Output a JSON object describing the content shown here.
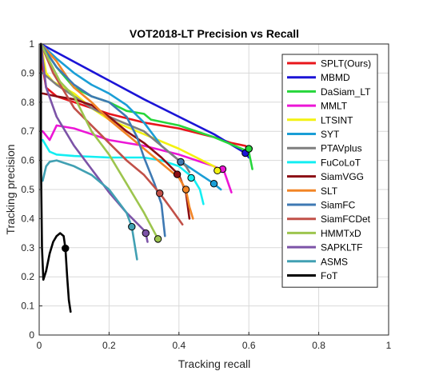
{
  "chart_data": {
    "type": "line",
    "title": "VOT2018-LT Precision vs Recall",
    "xlabel": "Tracking recall",
    "ylabel": "Tracking precision",
    "xlim": [
      0,
      1
    ],
    "ylim": [
      0,
      1
    ],
    "xticks": [
      "0",
      "0.2",
      "0.4",
      "0.6",
      "0.8",
      "1"
    ],
    "yticks": [
      "0",
      "0.1",
      "0.2",
      "0.3",
      "0.4",
      "0.5",
      "0.6",
      "0.7",
      "0.8",
      "0.9",
      "1"
    ],
    "grid": true,
    "legend_position": "top-right",
    "series": [
      {
        "name": "SPLT(Ours)",
        "color": "#e8151b",
        "marker": [
          0.6,
          0.64
        ],
        "points": [
          [
            0.005,
            1.0
          ],
          [
            0.01,
            0.92
          ],
          [
            0.02,
            0.85
          ],
          [
            0.05,
            0.82
          ],
          [
            0.1,
            0.8
          ],
          [
            0.2,
            0.76
          ],
          [
            0.3,
            0.73
          ],
          [
            0.4,
            0.71
          ],
          [
            0.5,
            0.68
          ],
          [
            0.55,
            0.66
          ],
          [
            0.59,
            0.65
          ],
          [
            0.6,
            0.64
          ]
        ]
      },
      {
        "name": "MBMD",
        "color": "#1b14d6",
        "marker": [
          0.59,
          0.625
        ],
        "points": [
          [
            0.005,
            1.0
          ],
          [
            0.3,
            0.81
          ],
          [
            0.5,
            0.69
          ],
          [
            0.59,
            0.625
          ],
          [
            0.6,
            0.61
          ]
        ]
      },
      {
        "name": "DaSiam_LT",
        "color": "#26d63b",
        "marker": [
          0.6,
          0.64
        ],
        "points": [
          [
            0.005,
            1.0
          ],
          [
            0.05,
            0.92
          ],
          [
            0.1,
            0.85
          ],
          [
            0.15,
            0.82
          ],
          [
            0.2,
            0.8
          ],
          [
            0.25,
            0.77
          ],
          [
            0.3,
            0.76
          ],
          [
            0.32,
            0.74
          ],
          [
            0.4,
            0.72
          ],
          [
            0.5,
            0.68
          ],
          [
            0.6,
            0.63
          ],
          [
            0.61,
            0.57
          ]
        ]
      },
      {
        "name": "MMLT",
        "color": "#ec16d6",
        "marker": [
          0.525,
          0.57
        ],
        "points": [
          [
            0.01,
            0.7
          ],
          [
            0.03,
            0.67
          ],
          [
            0.05,
            0.72
          ],
          [
            0.1,
            0.71
          ],
          [
            0.15,
            0.69
          ],
          [
            0.2,
            0.67
          ],
          [
            0.3,
            0.65
          ],
          [
            0.4,
            0.62
          ],
          [
            0.5,
            0.58
          ],
          [
            0.53,
            0.56
          ],
          [
            0.55,
            0.49
          ]
        ]
      },
      {
        "name": "LTSINT",
        "color": "#f3f211",
        "marker": [
          0.51,
          0.565
        ],
        "points": [
          [
            0.005,
            1.0
          ],
          [
            0.02,
            0.9
          ],
          [
            0.04,
            0.87
          ],
          [
            0.1,
            0.83
          ],
          [
            0.15,
            0.78
          ],
          [
            0.2,
            0.74
          ],
          [
            0.3,
            0.69
          ],
          [
            0.4,
            0.64
          ],
          [
            0.45,
            0.61
          ],
          [
            0.5,
            0.58
          ],
          [
            0.51,
            0.565
          ]
        ]
      },
      {
        "name": "SYT",
        "color": "#1a9ed6",
        "marker": [
          0.5,
          0.52
        ],
        "points": [
          [
            0.005,
            1.0
          ],
          [
            0.05,
            0.95
          ],
          [
            0.1,
            0.9
          ],
          [
            0.15,
            0.86
          ],
          [
            0.2,
            0.83
          ],
          [
            0.25,
            0.79
          ],
          [
            0.3,
            0.73
          ],
          [
            0.35,
            0.65
          ],
          [
            0.4,
            0.6
          ],
          [
            0.45,
            0.56
          ],
          [
            0.5,
            0.52
          ],
          [
            0.52,
            0.5
          ]
        ]
      },
      {
        "name": "PTAVplus",
        "color": "#7f7f7f",
        "marker": [
          0.405,
          0.595
        ],
        "points": [
          [
            0.01,
            0.9
          ],
          [
            0.05,
            0.86
          ],
          [
            0.1,
            0.82
          ],
          [
            0.15,
            0.78
          ],
          [
            0.2,
            0.75
          ],
          [
            0.3,
            0.7
          ],
          [
            0.35,
            0.65
          ],
          [
            0.4,
            0.6
          ],
          [
            0.42,
            0.58
          ],
          [
            0.43,
            0.56
          ]
        ]
      },
      {
        "name": "FuCoLoT",
        "color": "#13eef2",
        "marker": [
          0.435,
          0.54
        ],
        "points": [
          [
            0.01,
            0.67
          ],
          [
            0.03,
            0.63
          ],
          [
            0.05,
            0.62
          ],
          [
            0.1,
            0.615
          ],
          [
            0.2,
            0.61
          ],
          [
            0.3,
            0.61
          ],
          [
            0.35,
            0.6
          ],
          [
            0.4,
            0.58
          ],
          [
            0.44,
            0.54
          ],
          [
            0.46,
            0.5
          ],
          [
            0.47,
            0.45
          ]
        ]
      },
      {
        "name": "SiamVGG",
        "color": "#8c0f14",
        "marker": [
          0.395,
          0.552
        ],
        "points": [
          [
            0.01,
            0.83
          ],
          [
            0.05,
            0.82
          ],
          [
            0.1,
            0.81
          ],
          [
            0.15,
            0.79
          ],
          [
            0.2,
            0.75
          ],
          [
            0.25,
            0.7
          ],
          [
            0.3,
            0.66
          ],
          [
            0.35,
            0.61
          ],
          [
            0.4,
            0.55
          ],
          [
            0.42,
            0.49
          ],
          [
            0.43,
            0.4
          ]
        ]
      },
      {
        "name": "SLT",
        "color": "#f28526",
        "marker": [
          0.42,
          0.5
        ],
        "points": [
          [
            0.005,
            1.0
          ],
          [
            0.05,
            0.94
          ],
          [
            0.1,
            0.85
          ],
          [
            0.15,
            0.8
          ],
          [
            0.2,
            0.74
          ],
          [
            0.25,
            0.69
          ],
          [
            0.3,
            0.64
          ],
          [
            0.35,
            0.59
          ],
          [
            0.4,
            0.54
          ],
          [
            0.42,
            0.5
          ],
          [
            0.43,
            0.44
          ],
          [
            0.44,
            0.4
          ]
        ]
      },
      {
        "name": "SiamFC",
        "color": "#3e79b3",
        "marker": [
          0.405,
          0.595
        ],
        "points": [
          [
            0.005,
            1.0
          ],
          [
            0.05,
            0.92
          ],
          [
            0.1,
            0.86
          ],
          [
            0.15,
            0.82
          ],
          [
            0.2,
            0.8
          ],
          [
            0.25,
            0.75
          ],
          [
            0.28,
            0.68
          ],
          [
            0.3,
            0.61
          ],
          [
            0.33,
            0.52
          ],
          [
            0.35,
            0.45
          ],
          [
            0.36,
            0.34
          ]
        ]
      },
      {
        "name": "SiamFCDet",
        "color": "#c15048",
        "marker": [
          0.345,
          0.487
        ],
        "points": [
          [
            0.005,
            1.0
          ],
          [
            0.04,
            0.9
          ],
          [
            0.08,
            0.82
          ],
          [
            0.1,
            0.78
          ],
          [
            0.15,
            0.72
          ],
          [
            0.2,
            0.66
          ],
          [
            0.25,
            0.6
          ],
          [
            0.3,
            0.55
          ],
          [
            0.345,
            0.487
          ],
          [
            0.38,
            0.43
          ],
          [
            0.41,
            0.38
          ]
        ]
      },
      {
        "name": "HMMTxD",
        "color": "#9dc54e",
        "marker": [
          0.34,
          0.33
        ],
        "points": [
          [
            0.005,
            1.0
          ],
          [
            0.03,
            0.94
          ],
          [
            0.06,
            0.87
          ],
          [
            0.1,
            0.82
          ],
          [
            0.15,
            0.7
          ],
          [
            0.2,
            0.62
          ],
          [
            0.25,
            0.52
          ],
          [
            0.3,
            0.42
          ],
          [
            0.34,
            0.33
          ]
        ]
      },
      {
        "name": "SAPKLTF",
        "color": "#7c53a7",
        "marker": [
          0.305,
          0.35
        ],
        "points": [
          [
            0.005,
            1.0
          ],
          [
            0.02,
            0.85
          ],
          [
            0.05,
            0.75
          ],
          [
            0.1,
            0.65
          ],
          [
            0.15,
            0.57
          ],
          [
            0.2,
            0.49
          ],
          [
            0.25,
            0.42
          ],
          [
            0.3,
            0.36
          ],
          [
            0.305,
            0.35
          ],
          [
            0.31,
            0.32
          ]
        ]
      },
      {
        "name": "ASMS",
        "color": "#41a0b3",
        "marker": [
          0.265,
          0.372
        ],
        "points": [
          [
            0.01,
            0.53
          ],
          [
            0.02,
            0.58
          ],
          [
            0.03,
            0.595
          ],
          [
            0.05,
            0.6
          ],
          [
            0.1,
            0.58
          ],
          [
            0.15,
            0.55
          ],
          [
            0.2,
            0.5
          ],
          [
            0.25,
            0.42
          ],
          [
            0.265,
            0.372
          ],
          [
            0.28,
            0.26
          ]
        ]
      },
      {
        "name": "FoT",
        "color": "#000000",
        "marker": [
          0.075,
          0.298
        ],
        "points": [
          [
            0.005,
            1.0
          ],
          [
            0.005,
            0.6
          ],
          [
            0.008,
            0.3
          ],
          [
            0.012,
            0.19
          ],
          [
            0.02,
            0.22
          ],
          [
            0.03,
            0.28
          ],
          [
            0.04,
            0.32
          ],
          [
            0.05,
            0.34
          ],
          [
            0.06,
            0.35
          ],
          [
            0.07,
            0.34
          ],
          [
            0.075,
            0.298
          ],
          [
            0.08,
            0.2
          ],
          [
            0.085,
            0.12
          ],
          [
            0.09,
            0.08
          ]
        ]
      }
    ]
  }
}
